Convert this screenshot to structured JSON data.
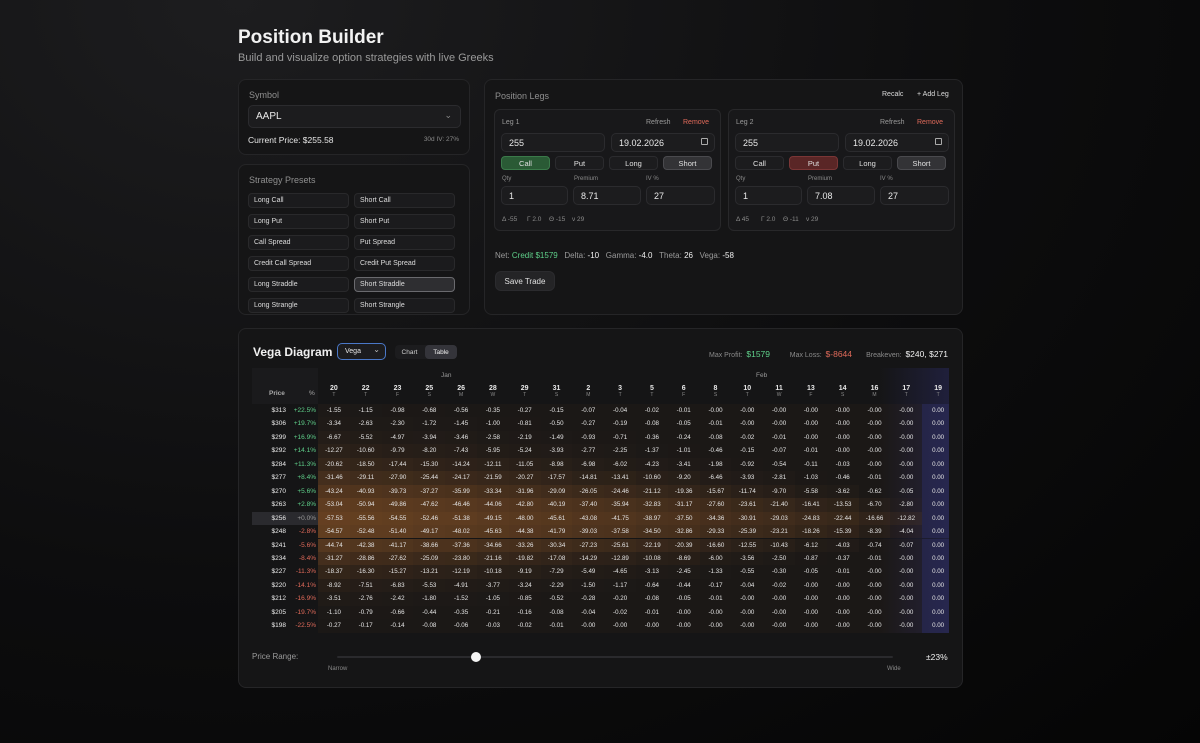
{
  "header": {
    "title": "Position Builder",
    "subtitle": "Build and visualize option strategies with live Greeks"
  },
  "symbol": {
    "label": "Symbol",
    "value": "AAPL",
    "current_price": "Current Price: $255.58",
    "iv": "30d IV: 27%"
  },
  "presets": {
    "label": "Strategy Presets",
    "items": [
      "Long Call",
      "Short Call",
      "Long Put",
      "Short Put",
      "Call Spread",
      "Put Spread",
      "Credit Call Spread",
      "Credit Put Spread",
      "Long Straddle",
      "Short Straddle",
      "Long Strangle",
      "Short Strangle"
    ],
    "selected": "Short Straddle"
  },
  "legs_panel": {
    "title": "Position Legs",
    "recalc": "Recalc",
    "add_leg": "+ Add Leg"
  },
  "legs": [
    {
      "title": "Leg 1",
      "refresh": "Refresh",
      "remove": "Remove",
      "strike": "255",
      "expiry": "19.02.2026",
      "type_call": "Call",
      "type_put": "Put",
      "side_long": "Long",
      "side_short": "Short",
      "active_type": "Call",
      "active_side": "Short",
      "qty_label": "Qty",
      "premium_label": "Premium",
      "iv_label": "IV %",
      "qty": "1",
      "premium": "8.71",
      "iv": "27",
      "delta": "Δ -55",
      "gamma": "Γ 2.0",
      "theta": "Θ -15",
      "vega": "ν 29"
    },
    {
      "title": "Leg 2",
      "refresh": "Refresh",
      "remove": "Remove",
      "strike": "255",
      "expiry": "19.02.2026",
      "type_call": "Call",
      "type_put": "Put",
      "side_long": "Long",
      "side_short": "Short",
      "active_type": "Put",
      "active_side": "Short",
      "qty_label": "Qty",
      "premium_label": "Premium",
      "iv_label": "IV %",
      "qty": "1",
      "premium": "7.08",
      "iv": "27",
      "delta": "Δ 45",
      "gamma": "Γ 2.0",
      "theta": "Θ -11",
      "vega": "ν 29"
    }
  ],
  "net": {
    "label": "Net:",
    "credit": "Credit $1579",
    "delta_label": "Delta:",
    "delta": "-10",
    "gamma_label": "Gamma:",
    "gamma": "-4.0",
    "theta_label": "Theta:",
    "theta": "26",
    "vega_label": "Vega:",
    "vega": "-58"
  },
  "save_button": "Save Trade",
  "diagram": {
    "title": "Vega Diagram",
    "select": "Vega",
    "view_chart": "Chart",
    "view_table": "Table",
    "max_profit_label": "Max Profit:",
    "max_profit": "$1579",
    "max_loss_label": "Max Loss:",
    "max_loss": "$-8644",
    "breakeven_label": "Breakeven:",
    "breakeven": "$240, $271"
  },
  "table": {
    "month_jan": "Jan",
    "month_feb": "Feb",
    "price_header": "Price",
    "pct_header": "%",
    "days": [
      "20",
      "22",
      "23",
      "25",
      "26",
      "28",
      "29",
      "31",
      "2",
      "3",
      "5",
      "6",
      "8",
      "10",
      "11",
      "13",
      "14",
      "16",
      "17",
      "19"
    ],
    "weekdays": [
      "T",
      "T",
      "F",
      "S",
      "M",
      "W",
      "T",
      "S",
      "M",
      "T",
      "T",
      "F",
      "S",
      "T",
      "W",
      "F",
      "S",
      "M",
      "T",
      "T"
    ],
    "prices": [
      "$313",
      "$306",
      "$299",
      "$292",
      "$284",
      "$277",
      "$270",
      "$263",
      "$256",
      "$248",
      "$241",
      "$234",
      "$227",
      "$220",
      "$212",
      "$205",
      "$198"
    ],
    "pcts": [
      "+22.5%",
      "+19.7%",
      "+16.9%",
      "+14.1%",
      "+11.3%",
      "+8.4%",
      "+5.6%",
      "+2.8%",
      "+0.0%",
      "-2.8%",
      "-5.6%",
      "-8.4%",
      "-11.3%",
      "-14.1%",
      "-16.9%",
      "-19.7%",
      "-22.5%"
    ],
    "rows": [
      [
        "-1.55",
        "-1.15",
        "-0.98",
        "-0.68",
        "-0.56",
        "-0.35",
        "-0.27",
        "-0.15",
        "-0.07",
        "-0.04",
        "-0.02",
        "-0.01",
        "-0.00",
        "-0.00",
        "-0.00",
        "-0.00",
        "-0.00",
        "-0.00",
        "-0.00",
        "0.00"
      ],
      [
        "-3.34",
        "-2.63",
        "-2.30",
        "-1.72",
        "-1.45",
        "-1.00",
        "-0.81",
        "-0.50",
        "-0.27",
        "-0.19",
        "-0.08",
        "-0.05",
        "-0.01",
        "-0.00",
        "-0.00",
        "-0.00",
        "-0.00",
        "-0.00",
        "-0.00",
        "0.00"
      ],
      [
        "-6.67",
        "-5.52",
        "-4.97",
        "-3.94",
        "-3.46",
        "-2.58",
        "-2.19",
        "-1.49",
        "-0.93",
        "-0.71",
        "-0.36",
        "-0.24",
        "-0.08",
        "-0.02",
        "-0.01",
        "-0.00",
        "-0.00",
        "-0.00",
        "-0.00",
        "0.00"
      ],
      [
        "-12.27",
        "-10.60",
        "-9.79",
        "-8.20",
        "-7.43",
        "-5.95",
        "-5.24",
        "-3.93",
        "-2.77",
        "-2.25",
        "-1.37",
        "-1.01",
        "-0.46",
        "-0.15",
        "-0.07",
        "-0.01",
        "-0.00",
        "-0.00",
        "-0.00",
        "0.00"
      ],
      [
        "-20.62",
        "-18.50",
        "-17.44",
        "-15.30",
        "-14.24",
        "-12.11",
        "-11.05",
        "-8.98",
        "-6.98",
        "-6.02",
        "-4.23",
        "-3.41",
        "-1.98",
        "-0.92",
        "-0.54",
        "-0.11",
        "-0.03",
        "-0.00",
        "-0.00",
        "0.00"
      ],
      [
        "-31.46",
        "-29.11",
        "-27.90",
        "-25.44",
        "-24.17",
        "-21.59",
        "-20.27",
        "-17.57",
        "-14.81",
        "-13.41",
        "-10.60",
        "-9.20",
        "-6.46",
        "-3.93",
        "-2.81",
        "-1.03",
        "-0.46",
        "-0.01",
        "-0.00",
        "0.00"
      ],
      [
        "-43.24",
        "-40.93",
        "-39.73",
        "-37.27",
        "-35.99",
        "-33.34",
        "-31.96",
        "-29.09",
        "-26.05",
        "-24.46",
        "-21.12",
        "-19.36",
        "-15.67",
        "-11.74",
        "-9.70",
        "-5.58",
        "-3.62",
        "-0.62",
        "-0.05",
        "0.00"
      ],
      [
        "-53.04",
        "-50.94",
        "-49.86",
        "-47.62",
        "-46.46",
        "-44.06",
        "-42.80",
        "-40.19",
        "-37.40",
        "-35.94",
        "-32.83",
        "-31.17",
        "-27.60",
        "-23.61",
        "-21.40",
        "-16.41",
        "-13.53",
        "-6.70",
        "-2.80",
        "0.00"
      ],
      [
        "-57.53",
        "-55.56",
        "-54.55",
        "-52.46",
        "-51.38",
        "-49.15",
        "-48.00",
        "-45.61",
        "-43.08",
        "-41.75",
        "-38.97",
        "-37.50",
        "-34.36",
        "-30.91",
        "-29.03",
        "-24.83",
        "-22.44",
        "-16.66",
        "-12.82",
        "0.00"
      ],
      [
        "-54.57",
        "-52.48",
        "-51.40",
        "-49.17",
        "-48.02",
        "-45.63",
        "-44.38",
        "-41.79",
        "-39.03",
        "-37.58",
        "-34.50",
        "-32.86",
        "-29.33",
        "-25.39",
        "-23.21",
        "-18.26",
        "-15.39",
        "-8.39",
        "-4.04",
        "0.00"
      ],
      [
        "-44.74",
        "-42.38",
        "-41.17",
        "-38.66",
        "-37.36",
        "-34.66",
        "-33.26",
        "-30.34",
        "-27.23",
        "-25.61",
        "-22.19",
        "-20.39",
        "-16.60",
        "-12.55",
        "-10.43",
        "-6.12",
        "-4.03",
        "-0.74",
        "-0.07",
        "0.00"
      ],
      [
        "-31.27",
        "-28.86",
        "-27.62",
        "-25.09",
        "-23.80",
        "-21.16",
        "-19.82",
        "-17.08",
        "-14.29",
        "-12.89",
        "-10.08",
        "-8.69",
        "-6.00",
        "-3.56",
        "-2.50",
        "-0.87",
        "-0.37",
        "-0.01",
        "-0.00",
        "0.00"
      ],
      [
        "-18.37",
        "-16.30",
        "-15.27",
        "-13.21",
        "-12.19",
        "-10.18",
        "-9.19",
        "-7.29",
        "-5.49",
        "-4.65",
        "-3.13",
        "-2.45",
        "-1.33",
        "-0.55",
        "-0.30",
        "-0.05",
        "-0.01",
        "-0.00",
        "-0.00",
        "0.00"
      ],
      [
        "-8.92",
        "-7.51",
        "-6.83",
        "-5.53",
        "-4.91",
        "-3.77",
        "-3.24",
        "-2.29",
        "-1.50",
        "-1.17",
        "-0.64",
        "-0.44",
        "-0.17",
        "-0.04",
        "-0.02",
        "-0.00",
        "-0.00",
        "-0.00",
        "-0.00",
        "0.00"
      ],
      [
        "-3.51",
        "-2.76",
        "-2.42",
        "-1.80",
        "-1.52",
        "-1.05",
        "-0.85",
        "-0.52",
        "-0.28",
        "-0.20",
        "-0.08",
        "-0.05",
        "-0.01",
        "-0.00",
        "-0.00",
        "-0.00",
        "-0.00",
        "-0.00",
        "-0.00",
        "0.00"
      ],
      [
        "-1.10",
        "-0.79",
        "-0.66",
        "-0.44",
        "-0.35",
        "-0.21",
        "-0.16",
        "-0.08",
        "-0.04",
        "-0.02",
        "-0.01",
        "-0.00",
        "-0.00",
        "-0.00",
        "-0.00",
        "-0.00",
        "-0.00",
        "-0.00",
        "-0.00",
        "0.00"
      ],
      [
        "-0.27",
        "-0.17",
        "-0.14",
        "-0.08",
        "-0.06",
        "-0.03",
        "-0.02",
        "-0.01",
        "-0.00",
        "-0.00",
        "-0.00",
        "-0.00",
        "-0.00",
        "-0.00",
        "-0.00",
        "-0.00",
        "-0.00",
        "-0.00",
        "-0.00",
        "0.00"
      ]
    ]
  },
  "range": {
    "label": "Price Range:",
    "value": "±23%",
    "narrow": "Narrow",
    "wide": "Wide",
    "slider_fraction": 0.25
  },
  "colors": {
    "positive": "#5fd08a",
    "negative": "#e06a5a",
    "accent_orange": "#c8803e",
    "selected_blue": "#4a78c8"
  }
}
